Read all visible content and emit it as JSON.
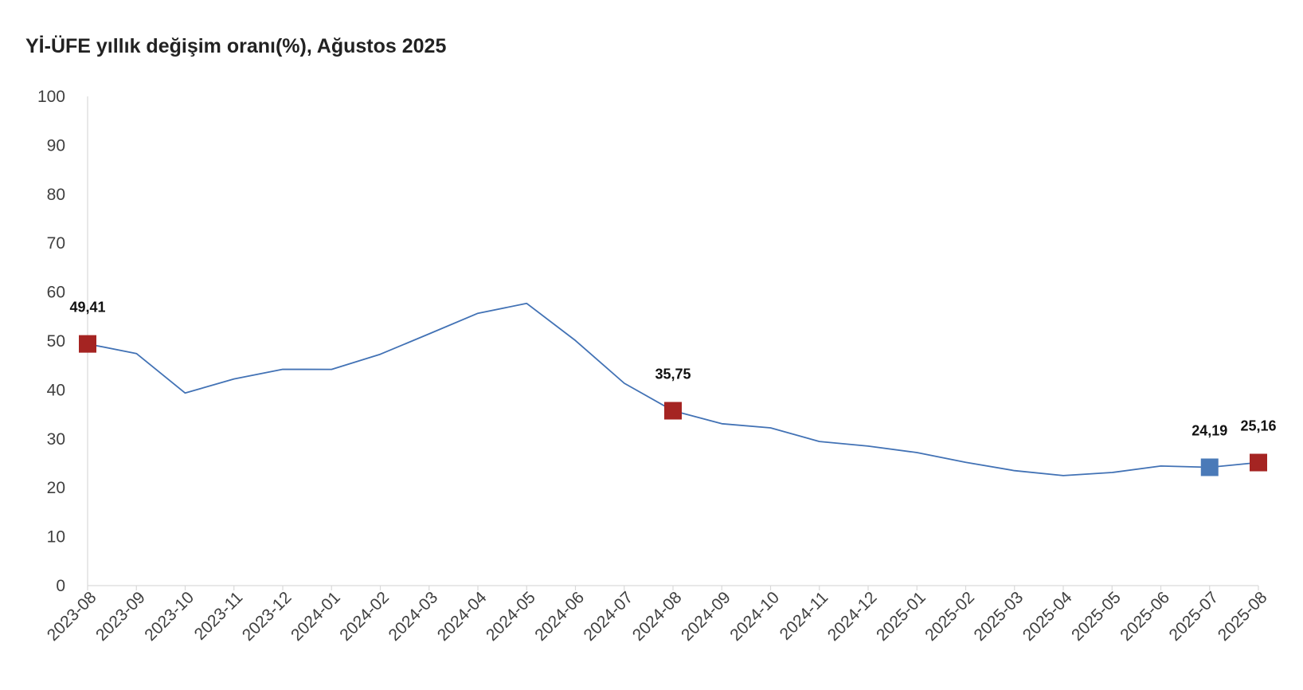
{
  "chart_data": {
    "type": "line",
    "title": "Yİ-ÜFE yıllık değişim oranı(%), Ağustos 2025",
    "xlabel": "",
    "ylabel": "",
    "ylim": [
      0,
      100
    ],
    "yticks": [
      0,
      10,
      20,
      30,
      40,
      50,
      60,
      70,
      80,
      90,
      100
    ],
    "grid": false,
    "legend": "none",
    "categories": [
      "2023-08",
      "2023-09",
      "2023-10",
      "2023-11",
      "2023-12",
      "2024-01",
      "2024-02",
      "2024-03",
      "2024-04",
      "2024-05",
      "2024-06",
      "2024-07",
      "2024-08",
      "2024-09",
      "2024-10",
      "2024-11",
      "2024-12",
      "2025-01",
      "2025-02",
      "2025-03",
      "2025-04",
      "2025-05",
      "2025-06",
      "2025-07",
      "2025-08"
    ],
    "series": [
      {
        "values": [
          49.41,
          47.44,
          39.37,
          42.25,
          44.22,
          44.2,
          47.29,
          51.47,
          55.66,
          57.68,
          50.09,
          41.37,
          35.75,
          33.09,
          32.24,
          29.47,
          28.52,
          27.2,
          25.21,
          23.5,
          22.5,
          23.13,
          24.45,
          24.19,
          25.16
        ]
      }
    ],
    "line_color": "#4272b5",
    "highlighted_points": [
      {
        "category": "2023-08",
        "value": 49.41,
        "label": "49,41",
        "color": "#a52422"
      },
      {
        "category": "2024-08",
        "value": 35.75,
        "label": "35,75",
        "color": "#a52422"
      },
      {
        "category": "2025-07",
        "value": 24.19,
        "label": "24,19",
        "color": "#4a7ab8"
      },
      {
        "category": "2025-08",
        "value": 25.16,
        "label": "25,16",
        "color": "#a52422"
      }
    ]
  }
}
